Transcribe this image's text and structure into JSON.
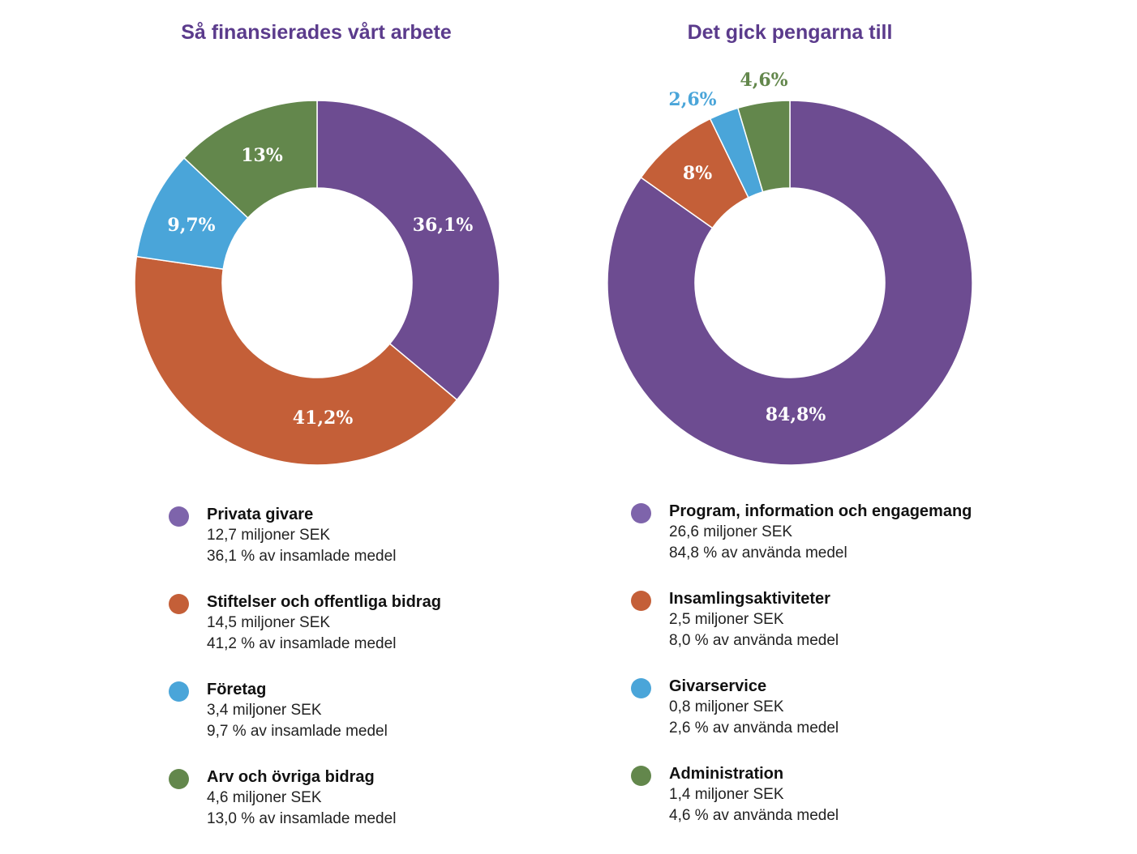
{
  "charts": [
    {
      "title": "Så finansierades vårt arbete",
      "chart_data": {
        "type": "pie",
        "title": "Så finansierades vårt arbete",
        "values": [
          36.1,
          41.2,
          9.7,
          13.0
        ],
        "categories": [
          "Privata givare",
          "Stiftelser och offentliga bidrag",
          "Företag",
          "Arv och övriga bidrag"
        ],
        "labels": [
          "36,1%",
          "41,2%",
          "9,7%",
          "13%"
        ],
        "colors": [
          "#6d4c91",
          "#c45f38",
          "#4aa5d9",
          "#63874c"
        ],
        "label_colors": [
          "#ffffff",
          "#ffffff",
          "#ffffff",
          "#ffffff"
        ]
      },
      "legend": [
        {
          "name": "Privata givare",
          "amount": "12,7 miljoner SEK",
          "share": "36,1 % av insamlade medel",
          "color": "#7e64ab"
        },
        {
          "name": "Stiftelser och offentliga bidrag",
          "amount": "14,5 miljoner SEK",
          "share": "41,2 % av insamlade medel",
          "color": "#c45f38"
        },
        {
          "name": "Företag",
          "amount": "3,4 miljoner SEK",
          "share": "9,7 % av insamlade medel",
          "color": "#4aa5d9"
        },
        {
          "name": "Arv och övriga bidrag",
          "amount": "4,6 miljoner SEK",
          "share": "13,0 % av insamlade medel",
          "color": "#63874c"
        }
      ]
    },
    {
      "title": "Det gick pengarna till",
      "chart_data": {
        "type": "pie",
        "title": "Det gick pengarna till",
        "values": [
          84.8,
          8.0,
          2.6,
          4.6
        ],
        "categories": [
          "Program, information och engagemang",
          "Insamlingsaktiviteter",
          "Givarservice",
          "Administration"
        ],
        "labels": [
          "84,8%",
          "8%",
          "2,6%",
          "4,6%"
        ],
        "colors": [
          "#6d4c91",
          "#c45f38",
          "#4aa5d9",
          "#63874c"
        ],
        "label_colors": [
          "#ffffff",
          "#ffffff",
          "#4aa5d9",
          "#63874c"
        ]
      },
      "legend": [
        {
          "name": "Program, information och engagemang",
          "amount": "26,6 miljoner SEK",
          "share": "84,8 % av använda medel",
          "color": "#7e64ab"
        },
        {
          "name": "Insamlingsaktiviteter",
          "amount": "2,5 miljoner SEK",
          "share": "8,0 % av använda medel",
          "color": "#c45f38"
        },
        {
          "name": "Givarservice",
          "amount": "0,8 miljoner SEK",
          "share": "2,6 % av använda medel",
          "color": "#4aa5d9"
        },
        {
          "name": "Administration",
          "amount": "1,4 miljoner SEK",
          "share": "4,6 % av använda medel",
          "color": "#63874c"
        }
      ]
    }
  ]
}
